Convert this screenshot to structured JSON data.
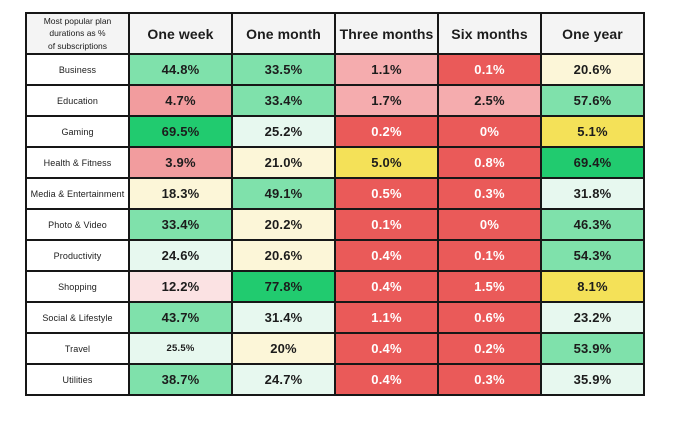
{
  "palette": {
    "header_bg": "#f4f4f4",
    "border": "#171717",
    "text_dark": "#1c1c1c",
    "text_light": "#ffffff",
    "strong_green": "#21cb6f",
    "green": "#7fe1ab",
    "mint": "#e7f8ef",
    "cream": "#fcf6d8",
    "yellow": "#f4e158",
    "pink": "#f29c9e",
    "pink_light": "#f5acae",
    "blush": "#fbe2e3",
    "red": "#ea5a59"
  },
  "table": {
    "corner_label": "Most popular plan\ndurations as %\nof subscriptions",
    "columns": [
      "One week",
      "One month",
      "Three months",
      "Six months",
      "One year"
    ],
    "rows": [
      {
        "label": "Business",
        "cells": [
          {
            "text": "44.8%",
            "color": "green",
            "text_color": "dark"
          },
          {
            "text": "33.5%",
            "color": "green",
            "text_color": "dark"
          },
          {
            "text": "1.1%",
            "color": "pink_light",
            "text_color": "dark"
          },
          {
            "text": "0.1%",
            "color": "red",
            "text_color": "white"
          },
          {
            "text": "20.6%",
            "color": "cream",
            "text_color": "dark"
          }
        ]
      },
      {
        "label": "Education",
        "cells": [
          {
            "text": "4.7%",
            "color": "pink",
            "text_color": "dark"
          },
          {
            "text": "33.4%",
            "color": "green",
            "text_color": "dark"
          },
          {
            "text": "1.7%",
            "color": "pink_light",
            "text_color": "dark"
          },
          {
            "text": "2.5%",
            "color": "pink_light",
            "text_color": "dark"
          },
          {
            "text": "57.6%",
            "color": "green",
            "text_color": "dark"
          }
        ]
      },
      {
        "label": "Gaming",
        "cells": [
          {
            "text": "69.5%",
            "color": "strong_green",
            "text_color": "dark"
          },
          {
            "text": "25.2%",
            "color": "mint",
            "text_color": "dark"
          },
          {
            "text": "0.2%",
            "color": "red",
            "text_color": "white"
          },
          {
            "text": "0%",
            "color": "red",
            "text_color": "white"
          },
          {
            "text": "5.1%",
            "color": "yellow",
            "text_color": "dark"
          }
        ]
      },
      {
        "label": "Health & Fitness",
        "cells": [
          {
            "text": "3.9%",
            "color": "pink",
            "text_color": "dark"
          },
          {
            "text": "21.0%",
            "color": "cream",
            "text_color": "dark"
          },
          {
            "text": "5.0%",
            "color": "yellow",
            "text_color": "dark"
          },
          {
            "text": "0.8%",
            "color": "red",
            "text_color": "white"
          },
          {
            "text": "69.4%",
            "color": "strong_green",
            "text_color": "dark"
          }
        ]
      },
      {
        "label": "Media & Entertainment",
        "cells": [
          {
            "text": "18.3%",
            "color": "cream",
            "text_color": "dark"
          },
          {
            "text": "49.1%",
            "color": "green",
            "text_color": "dark"
          },
          {
            "text": "0.5%",
            "color": "red",
            "text_color": "white"
          },
          {
            "text": "0.3%",
            "color": "red",
            "text_color": "white"
          },
          {
            "text": "31.8%",
            "color": "mint",
            "text_color": "dark"
          }
        ]
      },
      {
        "label": "Photo & Video",
        "cells": [
          {
            "text": "33.4%",
            "color": "green",
            "text_color": "dark"
          },
          {
            "text": "20.2%",
            "color": "cream",
            "text_color": "dark"
          },
          {
            "text": "0.1%",
            "color": "red",
            "text_color": "white"
          },
          {
            "text": "0%",
            "color": "red",
            "text_color": "white"
          },
          {
            "text": "46.3%",
            "color": "green",
            "text_color": "dark"
          }
        ]
      },
      {
        "label": "Productivity",
        "cells": [
          {
            "text": "24.6%",
            "color": "mint",
            "text_color": "dark"
          },
          {
            "text": "20.6%",
            "color": "cream",
            "text_color": "dark"
          },
          {
            "text": "0.4%",
            "color": "red",
            "text_color": "white"
          },
          {
            "text": "0.1%",
            "color": "red",
            "text_color": "white"
          },
          {
            "text": "54.3%",
            "color": "green",
            "text_color": "dark"
          }
        ]
      },
      {
        "label": "Shopping",
        "cells": [
          {
            "text": "12.2%",
            "color": "blush",
            "text_color": "dark"
          },
          {
            "text": "77.8%",
            "color": "strong_green",
            "text_color": "dark"
          },
          {
            "text": "0.4%",
            "color": "red",
            "text_color": "white"
          },
          {
            "text": "1.5%",
            "color": "red",
            "text_color": "white"
          },
          {
            "text": "8.1%",
            "color": "yellow",
            "text_color": "dark"
          }
        ]
      },
      {
        "label": "Social & Lifestyle",
        "cells": [
          {
            "text": "43.7%",
            "color": "green",
            "text_color": "dark"
          },
          {
            "text": "31.4%",
            "color": "mint",
            "text_color": "dark"
          },
          {
            "text": "1.1%",
            "color": "red",
            "text_color": "white"
          },
          {
            "text": "0.6%",
            "color": "red",
            "text_color": "white"
          },
          {
            "text": "23.2%",
            "color": "mint",
            "text_color": "dark"
          }
        ]
      },
      {
        "label": "Travel",
        "cells": [
          {
            "text": "25.5%",
            "color": "mint",
            "text_color": "dark",
            "small": true
          },
          {
            "text": "20%",
            "color": "cream",
            "text_color": "dark"
          },
          {
            "text": "0.4%",
            "color": "red",
            "text_color": "white"
          },
          {
            "text": "0.2%",
            "color": "red",
            "text_color": "white"
          },
          {
            "text": "53.9%",
            "color": "green",
            "text_color": "dark"
          }
        ]
      },
      {
        "label": "Utilities",
        "cells": [
          {
            "text": "38.7%",
            "color": "green",
            "text_color": "dark"
          },
          {
            "text": "24.7%",
            "color": "mint",
            "text_color": "dark"
          },
          {
            "text": "0.4%",
            "color": "red",
            "text_color": "white"
          },
          {
            "text": "0.3%",
            "color": "red",
            "text_color": "white"
          },
          {
            "text": "35.9%",
            "color": "mint",
            "text_color": "dark"
          }
        ]
      }
    ]
  },
  "chart_data": {
    "type": "heatmap",
    "title": "Most popular plan durations as % of subscriptions",
    "x_labels": [
      "One week",
      "One month",
      "Three months",
      "Six months",
      "One year"
    ],
    "y_labels": [
      "Business",
      "Education",
      "Gaming",
      "Health & Fitness",
      "Media & Entertainment",
      "Photo & Video",
      "Productivity",
      "Shopping",
      "Social & Lifestyle",
      "Travel",
      "Utilities"
    ],
    "unit": "%",
    "values_percent": [
      [
        44.8,
        33.5,
        1.1,
        0.1,
        20.6
      ],
      [
        4.7,
        33.4,
        1.7,
        2.5,
        57.6
      ],
      [
        69.5,
        25.2,
        0.2,
        0,
        5.1
      ],
      [
        3.9,
        21.0,
        5.0,
        0.8,
        69.4
      ],
      [
        18.3,
        49.1,
        0.5,
        0.3,
        31.8
      ],
      [
        33.4,
        20.2,
        0.1,
        0,
        46.3
      ],
      [
        24.6,
        20.6,
        0.4,
        0.1,
        54.3
      ],
      [
        12.2,
        77.8,
        0.4,
        1.5,
        8.1
      ],
      [
        43.7,
        31.4,
        1.1,
        0.6,
        23.2
      ],
      [
        25.5,
        20,
        0.4,
        0.2,
        53.9
      ],
      [
        38.7,
        24.7,
        0.4,
        0.3,
        35.9
      ]
    ],
    "color_scale": "red (low) -> cream/yellow (mid) -> green (high)",
    "legend": "none",
    "grid": "black 2px cell borders"
  }
}
